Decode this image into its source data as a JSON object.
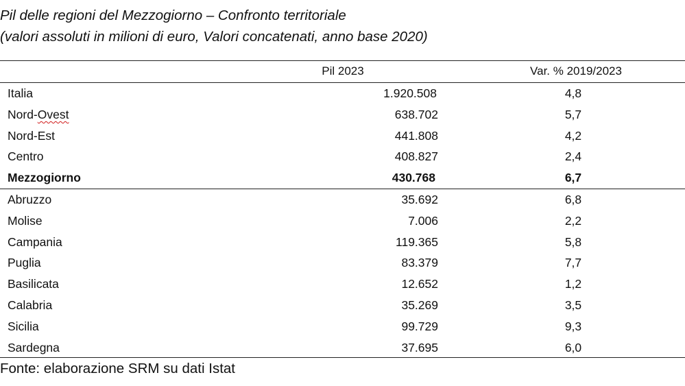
{
  "title": "Pil delle regioni del Mezzogiorno – Confronto territoriale",
  "subtitle": "(valori assoluti in milioni di euro, Valori concatenati, anno base 2020)",
  "columns": {
    "pil": "Pil 2023",
    "var": "Var. % 2019/2023"
  },
  "rows": [
    {
      "name": "Italia",
      "pil": "1.920.508",
      "var": "4,8"
    },
    {
      "name": "Nord-Ovest",
      "name_a": "Nord-",
      "name_b": "Ovest",
      "pil": "638.702",
      "var": "5,7"
    },
    {
      "name": "Nord-Est",
      "pil": "441.808",
      "var": "4,2"
    },
    {
      "name": "Centro",
      "pil": "408.827",
      "var": "2,4"
    },
    {
      "name": "Mezzogiorno",
      "pil": "430.768",
      "var": "6,7"
    },
    {
      "name": "Abruzzo",
      "pil": "35.692",
      "var": "6,8"
    },
    {
      "name": "Molise",
      "pil": "7.006",
      "var": "2,2"
    },
    {
      "name": "Campania",
      "pil": "119.365",
      "var": "5,8"
    },
    {
      "name": "Puglia",
      "pil": "83.379",
      "var": "7,7"
    },
    {
      "name": "Basilicata",
      "pil": "12.652",
      "var": "1,2"
    },
    {
      "name": "Calabria",
      "pil": "35.269",
      "var": "3,5"
    },
    {
      "name": "Sicilia",
      "pil": "99.729",
      "var": "9,3"
    },
    {
      "name": "Sardegna",
      "pil": "37.695",
      "var": "6,0"
    }
  ],
  "source": "Fonte: elaborazione SRM su dati Istat"
}
